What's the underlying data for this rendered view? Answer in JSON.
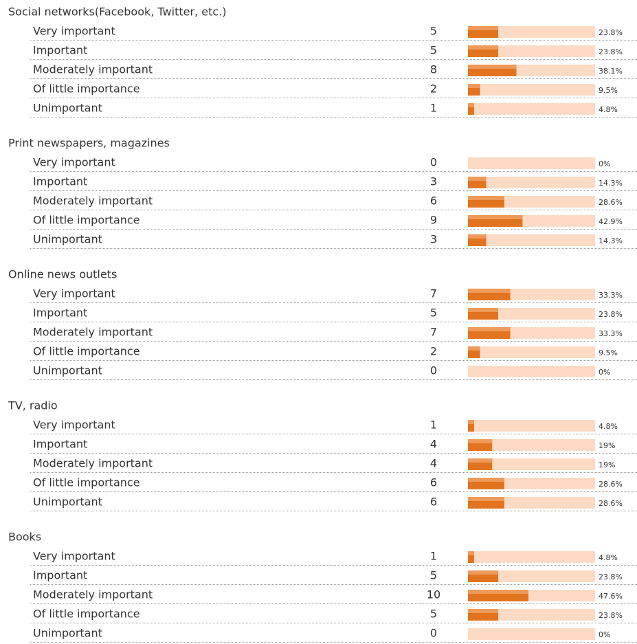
{
  "sections": [
    {
      "title": "Social networks(Facebook, Twitter, etc.)",
      "rows": [
        {
          "label": "Very important",
          "count": 5,
          "percent": 23.8,
          "percent_label": "23.8%"
        },
        {
          "label": "Important",
          "count": 5,
          "percent": 23.8,
          "percent_label": "23.8%"
        },
        {
          "label": "Moderately important",
          "count": 8,
          "percent": 38.1,
          "percent_label": "38.1%"
        },
        {
          "label": "Of little importance",
          "count": 2,
          "percent": 9.5,
          "percent_label": "9.5%"
        },
        {
          "label": "Unimportant",
          "count": 1,
          "percent": 4.8,
          "percent_label": "4.8%"
        }
      ]
    },
    {
      "title": "Print newspapers, magazines",
      "rows": [
        {
          "label": "Very important",
          "count": 0,
          "percent": 0,
          "percent_label": "0%"
        },
        {
          "label": "Important",
          "count": 3,
          "percent": 14.3,
          "percent_label": "14.3%"
        },
        {
          "label": "Moderately important",
          "count": 6,
          "percent": 28.6,
          "percent_label": "28.6%"
        },
        {
          "label": "Of little importance",
          "count": 9,
          "percent": 42.9,
          "percent_label": "42.9%"
        },
        {
          "label": "Unimportant",
          "count": 3,
          "percent": 14.3,
          "percent_label": "14.3%"
        }
      ]
    },
    {
      "title": "Online news outlets",
      "rows": [
        {
          "label": "Very important",
          "count": 7,
          "percent": 33.3,
          "percent_label": "33.3%"
        },
        {
          "label": "Important",
          "count": 5,
          "percent": 23.8,
          "percent_label": "23.8%"
        },
        {
          "label": "Moderately important",
          "count": 7,
          "percent": 33.3,
          "percent_label": "33.3%"
        },
        {
          "label": "Of little importance",
          "count": 2,
          "percent": 9.5,
          "percent_label": "9.5%"
        },
        {
          "label": "Unimportant",
          "count": 0,
          "percent": 0,
          "percent_label": "0%"
        }
      ]
    },
    {
      "title": "TV, radio",
      "rows": [
        {
          "label": "Very important",
          "count": 1,
          "percent": 4.8,
          "percent_label": "4.8%"
        },
        {
          "label": "Important",
          "count": 4,
          "percent": 19,
          "percent_label": "19%"
        },
        {
          "label": "Moderately important",
          "count": 4,
          "percent": 19,
          "percent_label": "19%"
        },
        {
          "label": "Of little importance",
          "count": 6,
          "percent": 28.6,
          "percent_label": "28.6%"
        },
        {
          "label": "Unimportant",
          "count": 6,
          "percent": 28.6,
          "percent_label": "28.6%"
        }
      ]
    },
    {
      "title": "Books",
      "rows": [
        {
          "label": "Very important",
          "count": 1,
          "percent": 4.8,
          "percent_label": "4.8%"
        },
        {
          "label": "Important",
          "count": 5,
          "percent": 23.8,
          "percent_label": "23.8%"
        },
        {
          "label": "Moderately important",
          "count": 10,
          "percent": 47.6,
          "percent_label": "47.6%"
        },
        {
          "label": "Of little importance",
          "count": 5,
          "percent": 23.8,
          "percent_label": "23.8%"
        },
        {
          "label": "Unimportant",
          "count": 0,
          "percent": 0,
          "percent_label": "0%"
        }
      ]
    }
  ]
}
